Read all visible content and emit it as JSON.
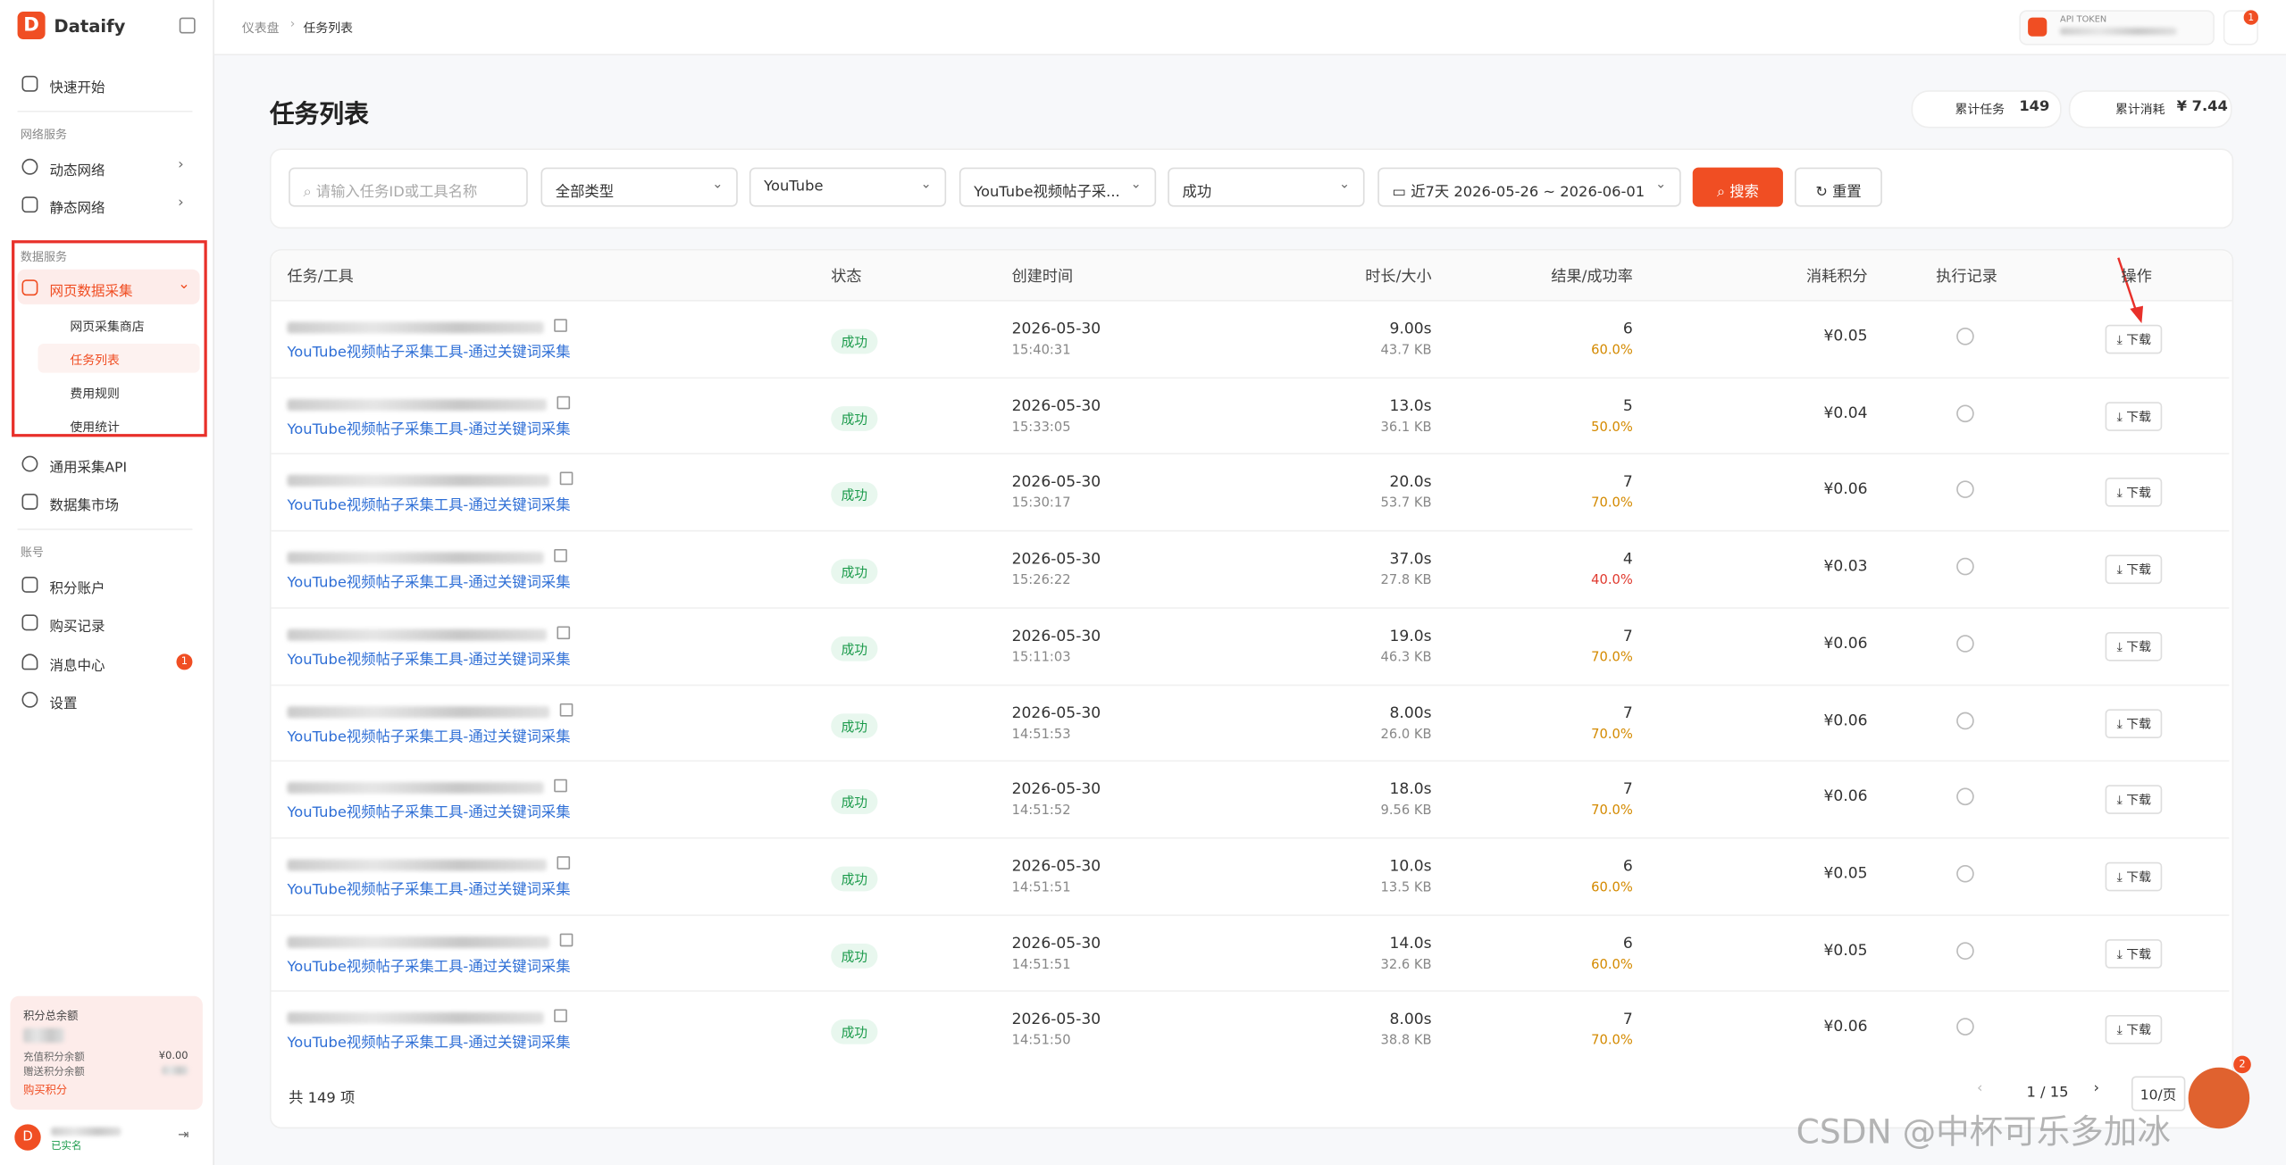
{
  "app": {
    "name": "Dataify"
  },
  "breadcrumb": [
    "仪表盘",
    "任务列表"
  ],
  "api_token": {
    "label": "API TOKEN"
  },
  "notifications": {
    "count": 1
  },
  "sidebar": {
    "quick_start": "快速开始",
    "network_title": "网络服务",
    "network_items": [
      "动态网络",
      "静态网络"
    ],
    "data_title": "数据服务",
    "data_group": "网页数据采集",
    "data_items": [
      "网页采集商店",
      "任务列表",
      "费用规则",
      "使用统计"
    ],
    "other_items": [
      "通用采集API",
      "数据集市场"
    ],
    "account_title": "账号",
    "account_items": [
      "积分账户",
      "购买记录",
      "消息中心",
      "设置"
    ],
    "message_badge": 1,
    "balance": {
      "title": "积分总余额",
      "recharge_label": "充值积分余额",
      "recharge_value": "¥0.00",
      "gift_label": "赠送积分余额",
      "buy": "购买积分"
    },
    "user": {
      "avatar": "D",
      "status": "已实名"
    }
  },
  "page": {
    "title": "任务列表",
    "total_tasks_label": "累计任务",
    "total_tasks": 149,
    "total_cost_label": "累计消耗",
    "total_cost": "¥ 7.44"
  },
  "filters": {
    "search_placeholder": "请输入任务ID或工具名称",
    "type": "全部类型",
    "platform": "YouTube",
    "tool": "YouTube视频帖子采...",
    "status": "成功",
    "date": "近7天 2026-05-26 ~ 2026-06-01",
    "search": "搜索",
    "reset": "重置"
  },
  "table": {
    "columns": [
      "任务/工具",
      "状态",
      "创建时间",
      "时长/大小",
      "结果/成功率",
      "消耗积分",
      "执行记录",
      "操作"
    ],
    "action": "下载",
    "rows": [
      {
        "tool": "YouTube视频帖子采集工具-通过关键词采集",
        "status": "成功",
        "date": "2026-05-30",
        "time": "15:40:31",
        "duration": "9.00s",
        "size": "43.7 KB",
        "results": 6,
        "rate": "60.0%",
        "cost": "¥0.05"
      },
      {
        "tool": "YouTube视频帖子采集工具-通过关键词采集",
        "status": "成功",
        "date": "2026-05-30",
        "time": "15:33:05",
        "duration": "13.0s",
        "size": "36.1 KB",
        "results": 5,
        "rate": "50.0%",
        "cost": "¥0.04"
      },
      {
        "tool": "YouTube视频帖子采集工具-通过关键词采集",
        "status": "成功",
        "date": "2026-05-30",
        "time": "15:30:17",
        "duration": "20.0s",
        "size": "53.7 KB",
        "results": 7,
        "rate": "70.0%",
        "cost": "¥0.06"
      },
      {
        "tool": "YouTube视频帖子采集工具-通过关键词采集",
        "status": "成功",
        "date": "2026-05-30",
        "time": "15:26:22",
        "duration": "37.0s",
        "size": "27.8 KB",
        "results": 4,
        "rate": "40.0%",
        "cost": "¥0.03"
      },
      {
        "tool": "YouTube视频帖子采集工具-通过关键词采集",
        "status": "成功",
        "date": "2026-05-30",
        "time": "15:11:03",
        "duration": "19.0s",
        "size": "46.3 KB",
        "results": 7,
        "rate": "70.0%",
        "cost": "¥0.06"
      },
      {
        "tool": "YouTube视频帖子采集工具-通过关键词采集",
        "status": "成功",
        "date": "2026-05-30",
        "time": "14:51:53",
        "duration": "8.00s",
        "size": "26.0 KB",
        "results": 7,
        "rate": "70.0%",
        "cost": "¥0.06"
      },
      {
        "tool": "YouTube视频帖子采集工具-通过关键词采集",
        "status": "成功",
        "date": "2026-05-30",
        "time": "14:51:52",
        "duration": "18.0s",
        "size": "9.56 KB",
        "results": 7,
        "rate": "70.0%",
        "cost": "¥0.06"
      },
      {
        "tool": "YouTube视频帖子采集工具-通过关键词采集",
        "status": "成功",
        "date": "2026-05-30",
        "time": "14:51:51",
        "duration": "10.0s",
        "size": "13.5 KB",
        "results": 6,
        "rate": "60.0%",
        "cost": "¥0.05"
      },
      {
        "tool": "YouTube视频帖子采集工具-通过关键词采集",
        "status": "成功",
        "date": "2026-05-30",
        "time": "14:51:51",
        "duration": "14.0s",
        "size": "32.6 KB",
        "results": 6,
        "rate": "60.0%",
        "cost": "¥0.05"
      },
      {
        "tool": "YouTube视频帖子采集工具-通过关键词采集",
        "status": "成功",
        "date": "2026-05-30",
        "time": "14:51:50",
        "duration": "8.00s",
        "size": "38.8 KB",
        "results": 7,
        "rate": "70.0%",
        "cost": "¥0.06"
      }
    ]
  },
  "footer": {
    "total": "共 149 项",
    "page": "1 / 15",
    "page_size": "10/页"
  },
  "chat_badge": 2,
  "watermark": "CSDN @中杯可乐多加冰"
}
